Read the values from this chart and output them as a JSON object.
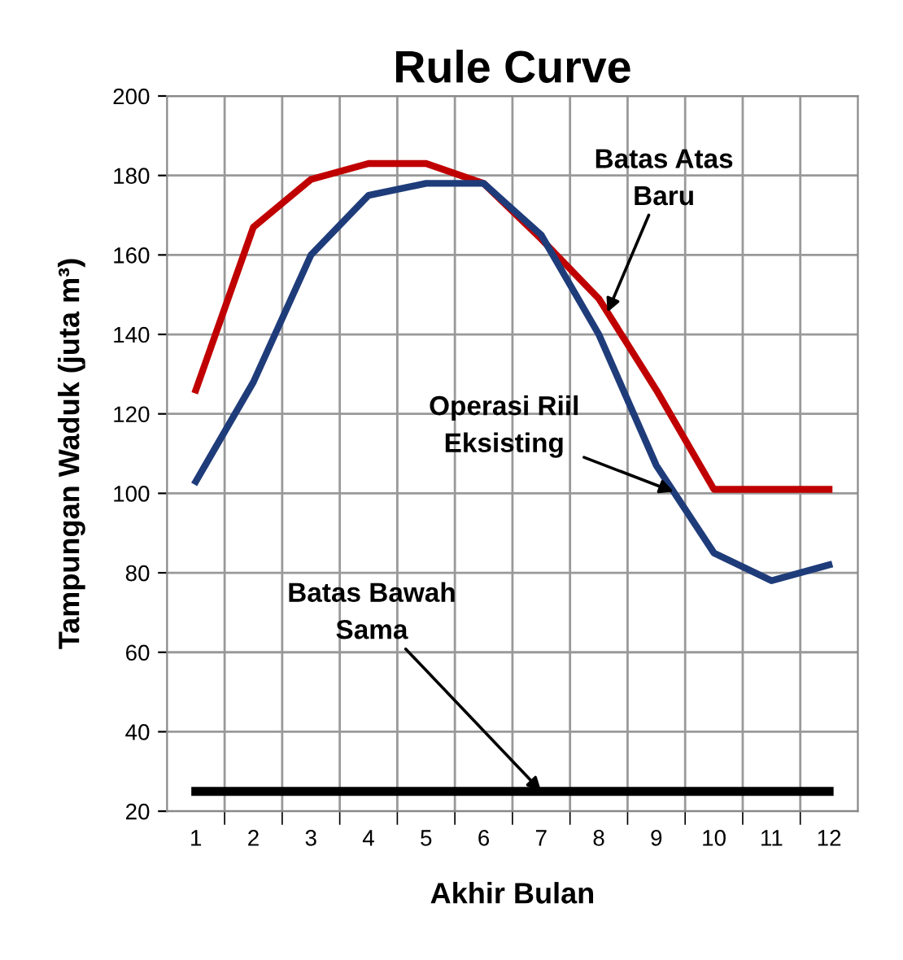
{
  "chart_data": {
    "type": "line",
    "title": "Rule Curve",
    "xlabel": "Akhir Bulan",
    "ylabel": "Tampungan Waduk (juta m³)",
    "categories": [
      "1",
      "2",
      "3",
      "4",
      "5",
      "6",
      "7",
      "8",
      "9",
      "10",
      "11",
      "12"
    ],
    "series": [
      {
        "name": "Batas Atas\nBaru",
        "color": "#c00000",
        "values": [
          126,
          167,
          179,
          183,
          183,
          178,
          164,
          149,
          126,
          101,
          101,
          101
        ]
      },
      {
        "name": "Operasi Riil\nEksisting",
        "color": "#1f3c7a",
        "values": [
          103,
          128,
          160,
          175,
          178,
          178,
          165,
          140,
          107,
          85,
          78,
          82
        ]
      },
      {
        "name": "Batas Bawah\nSama",
        "color": "#000000",
        "values": [
          25,
          25,
          25,
          25,
          25,
          25,
          25,
          25,
          25,
          25,
          25,
          25
        ]
      }
    ],
    "ylim": [
      20,
      200
    ],
    "yticks": [
      20,
      40,
      60,
      80,
      100,
      120,
      140,
      160,
      180,
      200
    ],
    "grid": true,
    "legend": false,
    "marker": "none",
    "line_style": "solid"
  }
}
